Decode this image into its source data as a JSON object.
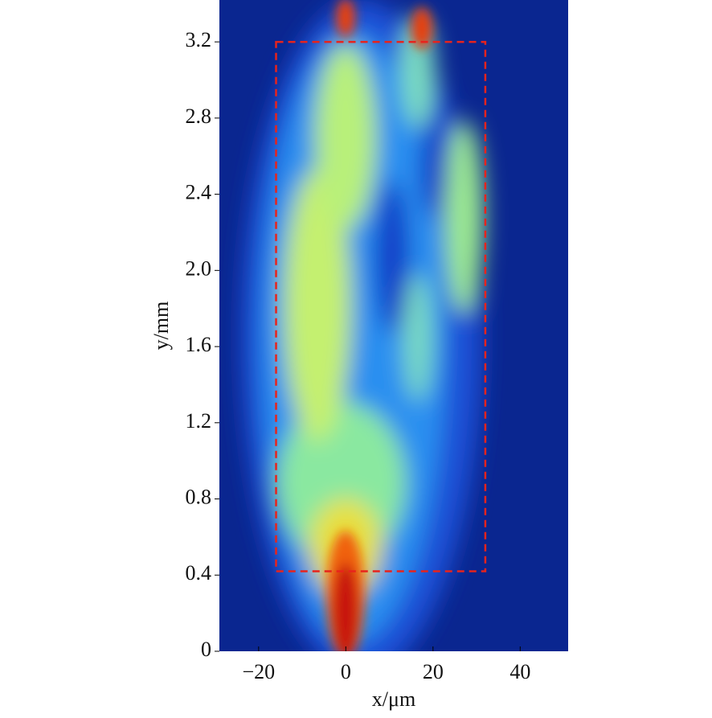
{
  "chart_data": {
    "type": "heatmap",
    "xlabel": "x/μm",
    "ylabel": "y/mm",
    "xlim": [
      -29,
      51
    ],
    "ylim": [
      0,
      3.42
    ],
    "xticks": [
      {
        "value": -20,
        "label": "−20"
      },
      0,
      20,
      40
    ],
    "yticks": [
      0,
      {
        "value": 0.4,
        "label": "0.4"
      },
      {
        "value": 0.8,
        "label": "0.8"
      },
      {
        "value": 1.2,
        "label": "1.2"
      },
      {
        "value": 1.6,
        "label": "1.6"
      },
      {
        "value": 2.0,
        "label": "2.0"
      },
      {
        "value": 2.4,
        "label": "2.4"
      },
      {
        "value": 2.8,
        "label": "2.8"
      },
      {
        "value": 3.2,
        "label": "3.2"
      }
    ],
    "region": {
      "x": [
        -16,
        32
      ],
      "y": [
        0.42,
        3.2
      ],
      "color": "#e8231c"
    }
  }
}
